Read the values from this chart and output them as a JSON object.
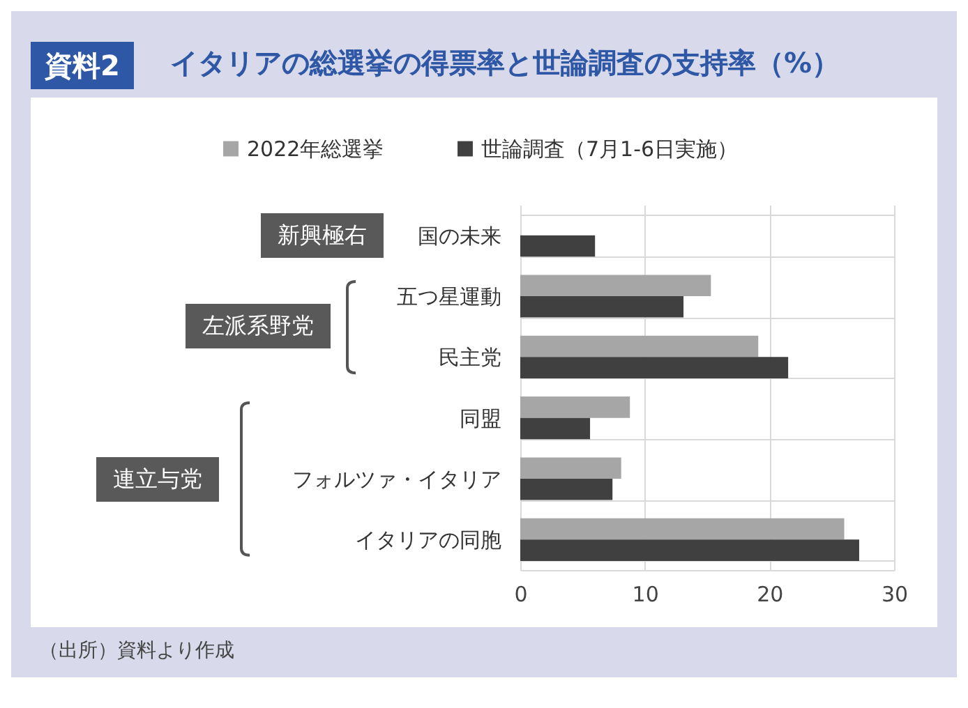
{
  "chart_data": {
    "type": "bar",
    "orientation": "horizontal",
    "title": "イタリアの総選挙の得票率と世論調査の支持率（%）",
    "categories": [
      "国の未来",
      "五つ星運動",
      "民主党",
      "同盟",
      "フォルツァ・イタリア",
      "イタリアの同胞"
    ],
    "series": [
      {
        "name": "2022年総選挙",
        "color": "#a6a6a6",
        "values": [
          null,
          15.3,
          19.1,
          8.8,
          8.1,
          26.0
        ]
      },
      {
        "name": "世論調査（7月1-6日実施）",
        "color": "#404040",
        "values": [
          6.0,
          13.1,
          21.5,
          5.6,
          7.4,
          27.2
        ]
      }
    ],
    "xlim": [
      0,
      30
    ],
    "xticks": [
      0,
      10,
      20,
      30
    ],
    "grid": true,
    "legend": "top",
    "annotations": [
      "資料2",
      "新興極右",
      "左派系野党",
      "連立与党",
      "（出所）資料より作成"
    ]
  }
}
